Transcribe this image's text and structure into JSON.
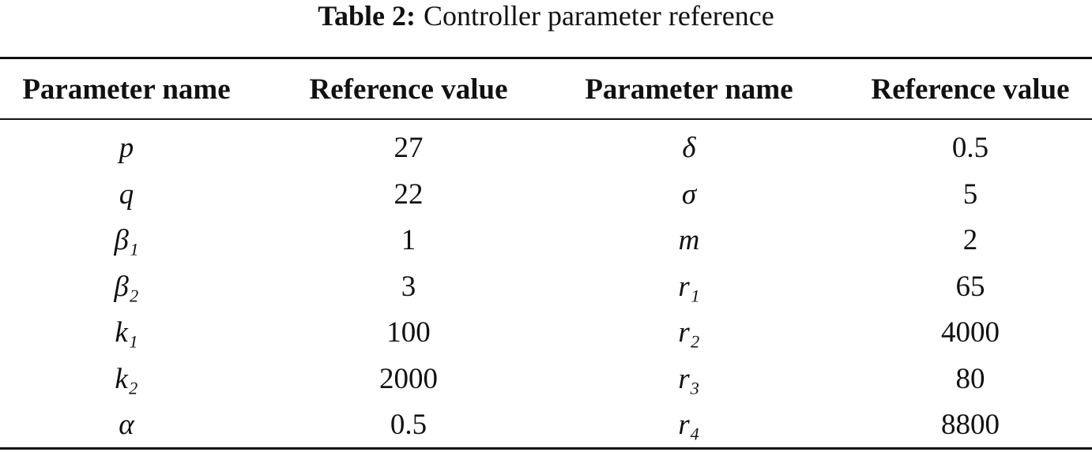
{
  "caption": {
    "label": "Table 2:",
    "text": "Controller parameter reference"
  },
  "table": {
    "header": [
      "Parameter name",
      "Reference value",
      "Parameter name",
      "Reference value"
    ],
    "rows": [
      [
        "p",
        27,
        "δ",
        0.5
      ],
      [
        "q",
        22,
        "σ",
        5
      ],
      [
        "β₁",
        1,
        "m",
        2
      ],
      [
        "β₂",
        3,
        "r₁",
        65
      ],
      [
        "k₁",
        100,
        "r₂",
        4000
      ],
      [
        "k₂",
        2000,
        "r₃",
        80
      ],
      [
        "α",
        0.5,
        "r₄",
        8800
      ]
    ]
  }
}
